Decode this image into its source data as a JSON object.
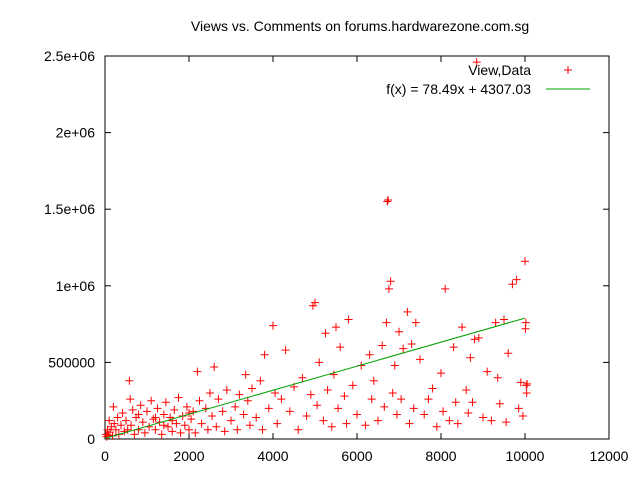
{
  "chart_data": {
    "type": "scatter",
    "title": "Views vs. Comments on forums.hardwarezone.com.sg",
    "xlabel": "",
    "ylabel": "",
    "xlim": [
      0,
      12000
    ],
    "ylim": [
      0,
      2500000
    ],
    "x_ticks": [
      0,
      2000,
      4000,
      6000,
      8000,
      10000,
      12000
    ],
    "x_tick_labels": [
      "0",
      "2000",
      "4000",
      "6000",
      "8000",
      "10000",
      "12000"
    ],
    "y_ticks": [
      0,
      500000,
      1000000,
      1500000,
      2000000,
      2500000
    ],
    "y_tick_labels": [
      "0",
      "500000",
      "1e+06",
      "1.5e+06",
      "2e+06",
      "2.5e+06"
    ],
    "grid": false,
    "legend_position": "top-right",
    "series": [
      {
        "name": "View,Data",
        "marker": "+",
        "color": "#ff0000",
        "points": [
          [
            20,
            30000
          ],
          [
            40,
            15000
          ],
          [
            60,
            60000
          ],
          [
            80,
            25000
          ],
          [
            100,
            120000
          ],
          [
            120,
            45000
          ],
          [
            150,
            80000
          ],
          [
            180,
            20000
          ],
          [
            200,
            210000
          ],
          [
            220,
            100000
          ],
          [
            260,
            60000
          ],
          [
            300,
            140000
          ],
          [
            330,
            30000
          ],
          [
            380,
            90000
          ],
          [
            420,
            170000
          ],
          [
            460,
            50000
          ],
          [
            500,
            120000
          ],
          [
            540,
            60000
          ],
          [
            580,
            380000
          ],
          [
            600,
            260000
          ],
          [
            620,
            90000
          ],
          [
            660,
            190000
          ],
          [
            700,
            30000
          ],
          [
            740,
            140000
          ],
          [
            800,
            60000
          ],
          [
            850,
            220000
          ],
          [
            900,
            110000
          ],
          [
            950,
            40000
          ],
          [
            1000,
            180000
          ],
          [
            1050,
            80000
          ],
          [
            1100,
            250000
          ],
          [
            1150,
            130000
          ],
          [
            1200,
            60000
          ],
          [
            1250,
            200000
          ],
          [
            1300,
            110000
          ],
          [
            1350,
            30000
          ],
          [
            1400,
            160000
          ],
          [
            1450,
            240000
          ],
          [
            1500,
            80000
          ],
          [
            1550,
            140000
          ],
          [
            1600,
            50000
          ],
          [
            1650,
            190000
          ],
          [
            1700,
            100000
          ],
          [
            1750,
            270000
          ],
          [
            1800,
            40000
          ],
          [
            1850,
            150000
          ],
          [
            1900,
            90000
          ],
          [
            1950,
            210000
          ],
          [
            2000,
            60000
          ],
          [
            2050,
            130000
          ],
          [
            2100,
            180000
          ],
          [
            2150,
            40000
          ],
          [
            2200,
            440000
          ],
          [
            2250,
            250000
          ],
          [
            2300,
            100000
          ],
          [
            2400,
            200000
          ],
          [
            2450,
            60000
          ],
          [
            2500,
            300000
          ],
          [
            2550,
            150000
          ],
          [
            2600,
            470000
          ],
          [
            2650,
            80000
          ],
          [
            2700,
            260000
          ],
          [
            2800,
            180000
          ],
          [
            2850,
            50000
          ],
          [
            2900,
            320000
          ],
          [
            3000,
            120000
          ],
          [
            3100,
            210000
          ],
          [
            3150,
            60000
          ],
          [
            3200,
            290000
          ],
          [
            3300,
            160000
          ],
          [
            3350,
            420000
          ],
          [
            3400,
            250000
          ],
          [
            3450,
            90000
          ],
          [
            3500,
            330000
          ],
          [
            3600,
            140000
          ],
          [
            3700,
            380000
          ],
          [
            3750,
            60000
          ],
          [
            3800,
            550000
          ],
          [
            3900,
            200000
          ],
          [
            4000,
            740000
          ],
          [
            4050,
            300000
          ],
          [
            4100,
            100000
          ],
          [
            4200,
            260000
          ],
          [
            4300,
            580000
          ],
          [
            4400,
            180000
          ],
          [
            4500,
            340000
          ],
          [
            4600,
            60000
          ],
          [
            4700,
            400000
          ],
          [
            4800,
            150000
          ],
          [
            4900,
            290000
          ],
          [
            4950,
            870000
          ],
          [
            5000,
            890000
          ],
          [
            5050,
            220000
          ],
          [
            5100,
            500000
          ],
          [
            5200,
            120000
          ],
          [
            5250,
            690000
          ],
          [
            5300,
            320000
          ],
          [
            5400,
            80000
          ],
          [
            5450,
            420000
          ],
          [
            5500,
            730000
          ],
          [
            5550,
            200000
          ],
          [
            5600,
            600000
          ],
          [
            5700,
            280000
          ],
          [
            5750,
            100000
          ],
          [
            5800,
            780000
          ],
          [
            5900,
            350000
          ],
          [
            6000,
            160000
          ],
          [
            6100,
            480000
          ],
          [
            6200,
            90000
          ],
          [
            6300,
            550000
          ],
          [
            6350,
            260000
          ],
          [
            6400,
            380000
          ],
          [
            6500,
            120000
          ],
          [
            6600,
            610000
          ],
          [
            6650,
            210000
          ],
          [
            6700,
            760000
          ],
          [
            6720,
            1550000
          ],
          [
            6740,
            1560000
          ],
          [
            6760,
            980000
          ],
          [
            6800,
            1030000
          ],
          [
            6850,
            300000
          ],
          [
            6900,
            480000
          ],
          [
            6950,
            160000
          ],
          [
            7000,
            700000
          ],
          [
            7050,
            260000
          ],
          [
            7100,
            590000
          ],
          [
            7200,
            830000
          ],
          [
            7250,
            100000
          ],
          [
            7300,
            620000
          ],
          [
            7350,
            200000
          ],
          [
            7400,
            760000
          ],
          [
            7500,
            520000
          ],
          [
            7600,
            160000
          ],
          [
            7700,
            260000
          ],
          [
            7800,
            330000
          ],
          [
            7900,
            80000
          ],
          [
            8000,
            430000
          ],
          [
            8050,
            180000
          ],
          [
            8100,
            980000
          ],
          [
            8200,
            120000
          ],
          [
            8300,
            600000
          ],
          [
            8350,
            240000
          ],
          [
            8400,
            100000
          ],
          [
            8500,
            730000
          ],
          [
            8600,
            320000
          ],
          [
            8650,
            170000
          ],
          [
            8700,
            530000
          ],
          [
            8750,
            240000
          ],
          [
            8800,
            650000
          ],
          [
            8850,
            2460000
          ],
          [
            8900,
            660000
          ],
          [
            9000,
            140000
          ],
          [
            9100,
            440000
          ],
          [
            9200,
            120000
          ],
          [
            9300,
            760000
          ],
          [
            9350,
            400000
          ],
          [
            9400,
            230000
          ],
          [
            9500,
            780000
          ],
          [
            9550,
            110000
          ],
          [
            9600,
            560000
          ],
          [
            9700,
            1010000
          ],
          [
            9800,
            1040000
          ],
          [
            9850,
            200000
          ],
          [
            9900,
            370000
          ],
          [
            9950,
            150000
          ],
          [
            10000,
            1160000
          ],
          [
            10010,
            720000
          ],
          [
            10020,
            760000
          ],
          [
            10030,
            350000
          ],
          [
            10040,
            300000
          ],
          [
            10050,
            360000
          ],
          [
            800,
            160000
          ],
          [
            1200,
            140000
          ],
          [
            1600,
            120000
          ],
          [
            2000,
            170000
          ],
          [
            1400,
            90000
          ]
        ]
      },
      {
        "name": "f(x) = 78.49x + 4307.03",
        "type": "line",
        "color": "#00a000",
        "slope": 78.49,
        "intercept": 4307.03,
        "x_range": [
          0,
          10000
        ]
      }
    ]
  }
}
